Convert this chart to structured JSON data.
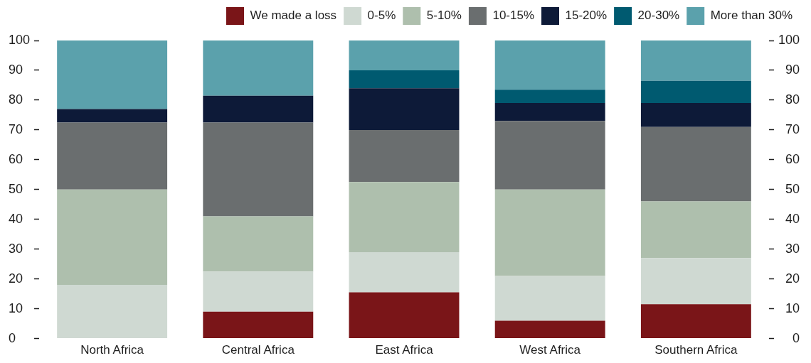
{
  "chart_data": {
    "type": "bar",
    "stacked": true,
    "legend": "top right",
    "categories": [
      "North Africa",
      "Central Africa",
      "East Africa",
      "West Africa",
      "Southern Africa"
    ],
    "series": [
      {
        "name": "We made a loss",
        "color": "#7a1518",
        "values": [
          0,
          9,
          15.5,
          6,
          11.5
        ]
      },
      {
        "name": "0-5%",
        "color": "#cfd9d2",
        "values": [
          18,
          13.5,
          13.5,
          15,
          15.5
        ]
      },
      {
        "name": "5-10%",
        "color": "#aebfad",
        "values": [
          32,
          18.5,
          23.5,
          29,
          19
        ]
      },
      {
        "name": "10-15%",
        "color": "#6a6e6f",
        "values": [
          22.5,
          31.5,
          17.5,
          23,
          25
        ]
      },
      {
        "name": "15-20%",
        "color": "#0d1a38",
        "values": [
          4.5,
          9,
          14,
          6,
          8
        ]
      },
      {
        "name": "20-30%",
        "color": "#005a70",
        "values": [
          0,
          0,
          6,
          4.5,
          7.5
        ]
      },
      {
        "name": "More than 30%",
        "color": "#5ba1ac",
        "values": [
          23,
          18.5,
          10,
          16.5,
          13.5
        ]
      }
    ],
    "ylim": [
      0,
      100
    ],
    "yticks": [
      0,
      10,
      20,
      30,
      40,
      50,
      60,
      70,
      80,
      90,
      100
    ],
    "y2lim": [
      0,
      100
    ],
    "y2ticks": [
      0,
      10,
      20,
      30,
      40,
      50,
      60,
      70,
      80,
      90,
      100
    ]
  }
}
